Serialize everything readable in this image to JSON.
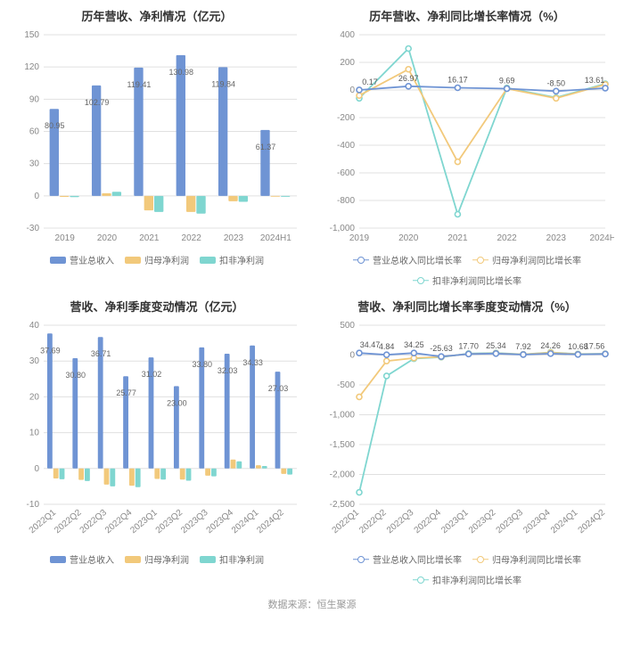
{
  "footer_text": "数据来源：恒生聚源",
  "colors": {
    "blue": "#6f94d4",
    "orange": "#f2c97b",
    "teal": "#7fd6d0",
    "grid": "#e0e0e0",
    "axis": "#cccccc",
    "title": "#333333",
    "label": "#666666"
  },
  "chart1": {
    "title": "历年营收、净利情况（亿元）",
    "type": "bar",
    "title_fontsize": 13,
    "categories": [
      "2019",
      "2020",
      "2021",
      "2022",
      "2023",
      "2024H1"
    ],
    "ylim": [
      -30,
      150
    ],
    "ytick_step": 30,
    "bar_group_width": 0.72,
    "series": [
      {
        "name": "营业总收入",
        "color": "#6f94d4",
        "values": [
          80.95,
          102.79,
          119.41,
          130.98,
          119.84,
          61.37
        ]
      },
      {
        "name": "归母净利润",
        "color": "#f2c97b",
        "values": [
          -1.0,
          2.5,
          -13.5,
          -15.0,
          -5.0,
          -0.8
        ]
      },
      {
        "name": "扣非净利润",
        "color": "#7fd6d0",
        "values": [
          -1.2,
          3.8,
          -15.0,
          -16.5,
          -5.5,
          -0.9
        ]
      }
    ],
    "value_labels": [
      80.95,
      102.79,
      119.41,
      130.98,
      119.84,
      61.37
    ]
  },
  "chart2": {
    "title": "历年营收、净利同比增长率情况（%）",
    "type": "line",
    "title_fontsize": 13,
    "categories": [
      "2019",
      "2020",
      "2021",
      "2022",
      "2023",
      "2024H1"
    ],
    "ylim": [
      -1000,
      400
    ],
    "ytick_step": 200,
    "series": [
      {
        "name": "营业总收入同比增长率",
        "color": "#6f94d4",
        "values": [
          0.17,
          26.97,
          16.17,
          9.69,
          -8.5,
          13.61
        ]
      },
      {
        "name": "归母净利润同比增长率",
        "color": "#f2c97b",
        "values": [
          -40,
          150,
          -520,
          10,
          -60,
          40
        ]
      },
      {
        "name": "扣非净利润同比增长率",
        "color": "#7fd6d0",
        "values": [
          -60,
          300,
          -900,
          15,
          -55,
          45
        ]
      }
    ],
    "value_labels": [
      0.17,
      26.97,
      16.17,
      9.69,
      -8.5,
      13.61
    ]
  },
  "chart3": {
    "title": "营收、净利季度变动情况（亿元）",
    "type": "bar",
    "title_fontsize": 13,
    "categories": [
      "2022Q1",
      "2022Q2",
      "2022Q3",
      "2022Q4",
      "2023Q1",
      "2023Q2",
      "2023Q3",
      "2023Q4",
      "2024Q1",
      "2024Q2"
    ],
    "x_rotate": -40,
    "ylim": [
      -10,
      40
    ],
    "ytick_step": 10,
    "bar_group_width": 0.72,
    "series": [
      {
        "name": "营业总收入",
        "color": "#6f94d4",
        "values": [
          37.69,
          30.8,
          36.71,
          25.77,
          31.02,
          23.0,
          33.8,
          32.03,
          34.33,
          27.03
        ]
      },
      {
        "name": "归母净利润",
        "color": "#f2c97b",
        "values": [
          -2.8,
          -3.2,
          -4.5,
          -4.8,
          -2.9,
          -3.1,
          -2.0,
          2.5,
          0.9,
          -1.5
        ]
      },
      {
        "name": "扣非净利润",
        "color": "#7fd6d0",
        "values": [
          -3.0,
          -3.5,
          -5.0,
          -5.2,
          -3.1,
          -3.4,
          -2.2,
          2.0,
          0.7,
          -1.7
        ]
      }
    ],
    "value_labels": [
      37.69,
      30.8,
      36.71,
      25.77,
      31.02,
      23.0,
      33.8,
      32.03,
      34.33,
      27.03
    ]
  },
  "chart4": {
    "title": "营收、净利同比增长率季度变动情况（%）",
    "type": "line",
    "title_fontsize": 13,
    "categories": [
      "2022Q1",
      "2022Q2",
      "2022Q3",
      "2022Q4",
      "2023Q1",
      "2023Q2",
      "2023Q3",
      "2023Q4",
      "2024Q1",
      "2024Q2"
    ],
    "x_rotate": -40,
    "ylim": [
      -2500,
      500
    ],
    "ytick_step": 500,
    "series": [
      {
        "name": "营业总收入同比增长率",
        "color": "#6f94d4",
        "values": [
          34.47,
          4.84,
          34.25,
          -25.63,
          17.7,
          25.34,
          7.92,
          24.26,
          10.68,
          17.56
        ]
      },
      {
        "name": "归母净利润同比增长率",
        "color": "#f2c97b",
        "values": [
          -700,
          -100,
          -50,
          -30,
          20,
          30,
          10,
          40,
          15,
          20
        ]
      },
      {
        "name": "扣非净利润同比增长率",
        "color": "#7fd6d0",
        "values": [
          -2300,
          -350,
          -60,
          -35,
          25,
          35,
          12,
          45,
          18,
          22
        ]
      }
    ],
    "value_labels": [
      34.47,
      4.84,
      34.25,
      -25.63,
      17.7,
      25.34,
      7.92,
      24.26,
      10.68,
      17.56
    ]
  }
}
